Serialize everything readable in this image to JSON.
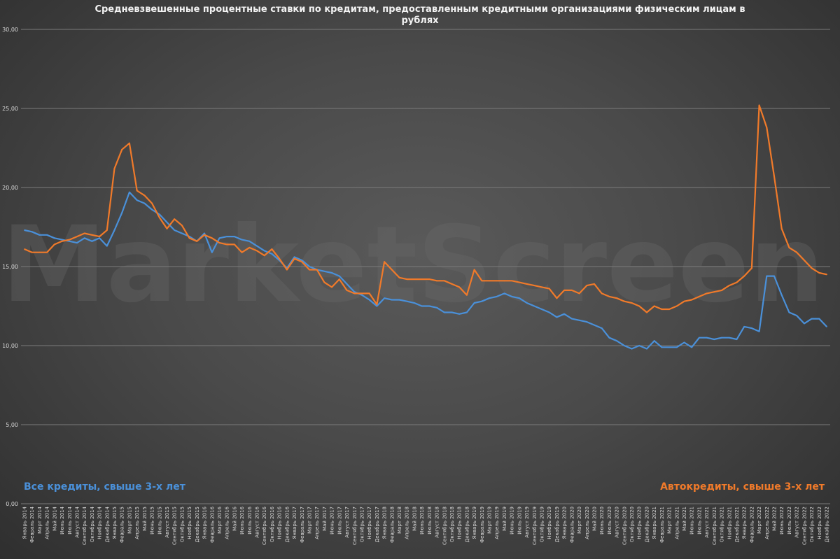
{
  "chart_data": {
    "type": "line",
    "title": "Средневзвешенные процентные ставки по кредитам, предоставленным кредитными организациями физическим лицам в рублях",
    "watermark": "MarketScreen",
    "ylim": [
      0,
      30
    ],
    "yticks": [
      "0,00",
      "5,00",
      "10,00",
      "15,00",
      "20,00",
      "25,00",
      "30,00"
    ],
    "grid": true,
    "categories": [
      "Январь 2014",
      "Февраль 2014",
      "Март 2014",
      "Апрель 2014",
      "Май 2014",
      "Июнь 2014",
      "Июль 2014",
      "Август 2014",
      "Сентябрь 2014",
      "Октябрь 2014",
      "Ноябрь 2014",
      "Декабрь 2014",
      "Январь 2015",
      "Февраль 2015",
      "Март 2015",
      "Апрель 2015",
      "Май 2015",
      "Июнь 2015",
      "Июль 2015",
      "Август 2015",
      "Сентябрь 2015",
      "Октябрь 2015",
      "Ноябрь 2015",
      "Декабрь 2015",
      "Январь 2016",
      "Февраль 2016",
      "Март 2016",
      "Апрель 2016",
      "Май 2016",
      "Июнь 2016",
      "Июль 2016",
      "Август 2016",
      "Сентябрь 2016",
      "Октябрь 2016",
      "Ноябрь 2016",
      "Декабрь 2016",
      "Январь 2017",
      "Февраль 2017",
      "Март 2017",
      "Апрель 2017",
      "Май 2017",
      "Июнь 2017",
      "Июль 2017",
      "Август 2017",
      "Сентябрь 2017",
      "Октябрь 2017",
      "Ноябрь 2017",
      "Декабрь 2017",
      "Январь 2018",
      "Февраль 2018",
      "Март 2018",
      "Апрель 2018",
      "Май 2018",
      "Июнь 2018",
      "Июль 2018",
      "Август 2018",
      "Сентябрь 2018",
      "Октябрь 2018",
      "Ноябрь 2018",
      "Декабрь 2018",
      "Январь 2019",
      "Февраль 2019",
      "Март 2019",
      "Апрель 2019",
      "Май 2019",
      "Июнь 2019",
      "Июль 2019",
      "Август 2019",
      "Сентябрь 2019",
      "Октябрь 2019",
      "Ноябрь 2019",
      "Декабрь 2019",
      "Январь 2020",
      "Февраль 2020",
      "Март 2020",
      "Апрель 2020",
      "Май 2020",
      "Июнь 2020",
      "Июль 2020",
      "Август 2020",
      "Сентябрь 2020",
      "Октябрь 2020",
      "Ноябрь 2020",
      "Декабрь 2020",
      "Январь 2021",
      "Февраль 2021",
      "Март 2021",
      "Апрель 2021",
      "Май 2021",
      "Июнь 2021",
      "Июль 2021",
      "Август 2021",
      "Сентябрь 2021",
      "Октябрь 2021",
      "Ноябрь 2021",
      "Декабрь 2021",
      "Январь 2022",
      "Февраль 2022",
      "Март 2022",
      "Апрель 2022",
      "Май 2022",
      "Июнь 2022",
      "Июль 2022",
      "Август 2022",
      "Сентябрь 2022",
      "Октябрь 2022",
      "Ноябрь 2022",
      "Декабрь 2022"
    ],
    "series": [
      {
        "name": "Все кредиты, свыше 3-х лет",
        "color": "#4a90d9",
        "values": [
          17.3,
          17.2,
          17.0,
          17.0,
          16.8,
          16.7,
          16.6,
          16.5,
          16.8,
          16.6,
          16.8,
          16.3,
          17.3,
          18.4,
          19.7,
          19.2,
          19.0,
          18.6,
          18.3,
          17.8,
          17.3,
          17.1,
          16.9,
          16.6,
          17.1,
          15.9,
          16.8,
          16.9,
          16.9,
          16.7,
          16.6,
          16.3,
          16.0,
          15.8,
          15.4,
          14.9,
          15.6,
          15.4,
          15.0,
          14.8,
          14.7,
          14.6,
          14.4,
          13.9,
          13.4,
          13.2,
          12.9,
          12.5,
          13.0,
          12.9,
          12.9,
          12.8,
          12.7,
          12.5,
          12.5,
          12.4,
          12.1,
          12.1,
          12.0,
          12.1,
          12.7,
          12.8,
          13.0,
          13.1,
          13.3,
          13.1,
          13.0,
          12.7,
          12.5,
          12.3,
          12.1,
          11.8,
          12.0,
          11.7,
          11.6,
          11.5,
          11.3,
          11.1,
          10.5,
          10.3,
          10.0,
          9.8,
          10.0,
          9.8,
          10.3,
          9.9,
          9.9,
          9.9,
          10.2,
          9.9,
          10.5,
          10.5,
          10.4,
          10.5,
          10.5,
          10.4,
          11.2,
          11.1,
          10.9,
          14.4,
          14.4,
          13.2,
          12.1,
          11.9,
          11.4,
          11.7,
          11.7,
          11.2
        ]
      },
      {
        "name": "Автокредиты, свыше 3-х лет",
        "color": "#f07a2a",
        "values": [
          16.1,
          15.9,
          15.9,
          15.9,
          16.4,
          16.6,
          16.7,
          16.9,
          17.1,
          17.0,
          16.9,
          17.3,
          21.2,
          22.4,
          22.8,
          19.8,
          19.5,
          19.0,
          18.1,
          17.4,
          18.0,
          17.6,
          16.8,
          16.6,
          17.0,
          16.8,
          16.5,
          16.4,
          16.4,
          15.9,
          16.2,
          16.0,
          15.7,
          16.1,
          15.5,
          14.8,
          15.5,
          15.3,
          14.8,
          14.8,
          14.0,
          13.7,
          14.2,
          13.5,
          13.3,
          13.3,
          13.3,
          12.6,
          15.3,
          14.8,
          14.3,
          14.2,
          14.2,
          14.2,
          14.2,
          14.1,
          14.1,
          13.9,
          13.7,
          13.2,
          14.8,
          14.1,
          14.1,
          14.1,
          14.1,
          14.1,
          14.0,
          13.9,
          13.8,
          13.7,
          13.6,
          13.0,
          13.5,
          13.5,
          13.3,
          13.8,
          13.9,
          13.3,
          13.1,
          13.0,
          12.8,
          12.7,
          12.5,
          12.1,
          12.5,
          12.3,
          12.3,
          12.5,
          12.8,
          12.9,
          13.1,
          13.3,
          13.4,
          13.5,
          13.8,
          14.0,
          14.4,
          14.9,
          25.2,
          23.8,
          20.7,
          17.4,
          16.2,
          15.9,
          15.4,
          14.9,
          14.6,
          14.5
        ]
      }
    ]
  }
}
